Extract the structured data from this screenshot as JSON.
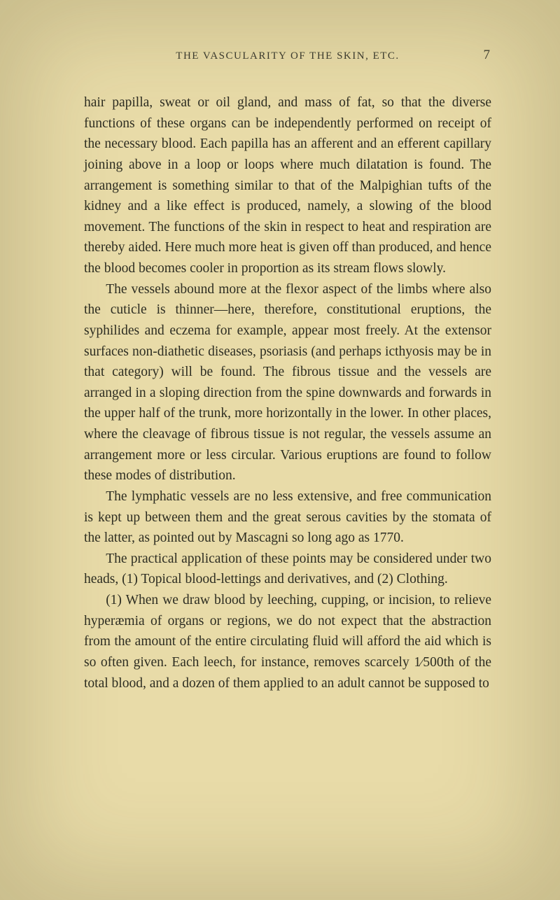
{
  "header": {
    "running_title": "THE VASCULARITY OF THE SKIN, ETC.",
    "page_number": "7"
  },
  "paragraphs": {
    "p1": "hair papilla, sweat or oil gland, and mass of fat, so that the diverse functions of these organs can be independently performed on receipt of the necessary blood. Each papilla has an afferent and an efferent capillary joining above in a loop or loops where much dilatation is found. The arrangement is something similar to that of the Malpighian tufts of the kidney and a like effect is produced, namely, a slowing of the blood movement. The functions of the skin in respect to heat and respiration are thereby aided. Here much more heat is given off than produced, and hence the blood becomes cooler in proportion as its stream flows slowly.",
    "p2": "The vessels abound more at the flexor aspect of the limbs where also the cuticle is thinner—here, therefore, constitutional eruptions, the syphilides and eczema for example, appear most freely. At the extensor surfaces non-diathetic diseases, psoriasis (and perhaps icthyosis may be in that category) will be found. The fibrous tissue and the vessels are arranged in a sloping direction from the spine downwards and forwards in the upper half of the trunk, more horizontally in the lower. In other places, where the cleavage of fibrous tissue is not regular, the vessels assume an arrangement more or less circular. Various eruptions are found to follow these modes of distribution.",
    "p3": "The lymphatic vessels are no less extensive, and free communication is kept up between them and the great serous cavities by the stomata of the latter, as pointed out by Mascagni so long ago as 1770.",
    "p4": "The practical application of these points may be considered under two heads, (1) Topical blood-lettings and derivatives, and (2) Clothing.",
    "p5": "(1) When we draw blood by leeching, cupping, or incision, to relieve hyperæmia of organs or regions, we do not expect that the abstraction from the amount of the entire circulating fluid will afford the aid which is so often given. Each leech, for instance, removes scarcely 1⁄500th of the total blood, and a dozen of them applied to an adult cannot be supposed to"
  },
  "colors": {
    "background": "#e8dba8",
    "text": "#2d2d22"
  }
}
